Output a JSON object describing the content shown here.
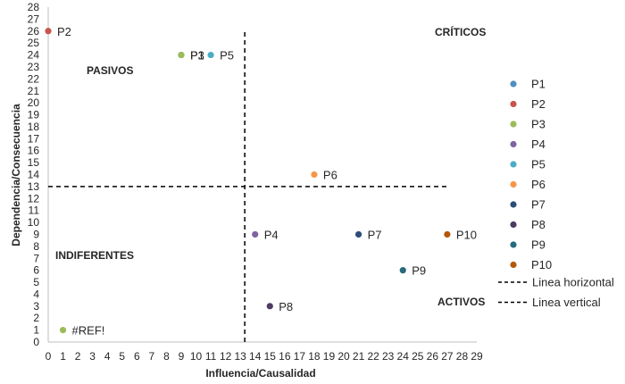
{
  "chart_data": {
    "type": "scatter",
    "title": "",
    "xlabel": "Influencia/Causalidad",
    "ylabel": "Dependencia/Consecuencia",
    "xlim": [
      0,
      29
    ],
    "ylim": [
      0,
      28
    ],
    "x_ticks": [
      0,
      1,
      2,
      3,
      4,
      5,
      6,
      7,
      8,
      9,
      10,
      11,
      12,
      13,
      14,
      15,
      16,
      17,
      18,
      19,
      20,
      21,
      22,
      23,
      24,
      25,
      26,
      27,
      28,
      29
    ],
    "y_ticks": [
      0,
      1,
      2,
      3,
      4,
      5,
      6,
      7,
      8,
      9,
      10,
      11,
      12,
      13,
      14,
      15,
      16,
      17,
      18,
      19,
      20,
      21,
      22,
      23,
      24,
      25,
      26,
      27,
      28
    ],
    "grid": false,
    "series": [
      {
        "name": "P1",
        "x": 9,
        "y": 24,
        "label": "P1",
        "color": "#4e8fc4"
      },
      {
        "name": "P2",
        "x": 0,
        "y": 26,
        "label": "P2",
        "color": "#c9544c"
      },
      {
        "name": "P3",
        "x": 9,
        "y": 24,
        "label": "P3",
        "color": "#9bbb59"
      },
      {
        "name": "P4",
        "x": 14,
        "y": 9,
        "label": "P4",
        "color": "#8064a2"
      },
      {
        "name": "P5",
        "x": 11,
        "y": 24,
        "label": "P5",
        "color": "#4bacc6"
      },
      {
        "name": "P6",
        "x": 18,
        "y": 14,
        "label": "P6",
        "color": "#f79646"
      },
      {
        "name": "P7",
        "x": 21,
        "y": 9,
        "label": "P7",
        "color": "#2c4d75"
      },
      {
        "name": "P8",
        "x": 15,
        "y": 3,
        "label": "P8",
        "color": "#4d3b62"
      },
      {
        "name": "P9",
        "x": 24,
        "y": 6,
        "label": "P9",
        "color": "#276a7c"
      },
      {
        "name": "P10",
        "x": 27,
        "y": 9,
        "label": "P10",
        "color": "#b65708"
      }
    ],
    "extra_points": [
      {
        "x": 1,
        "y": 1,
        "label": "#REF!",
        "color": "#9bbb59"
      }
    ],
    "reference_lines": [
      {
        "name": "Linea horizontal",
        "orientation": "horizontal",
        "value": 13,
        "from": 0,
        "to": 27
      },
      {
        "name": "Linea vertical",
        "orientation": "vertical",
        "value": 13.3,
        "from": 0,
        "to": 26
      }
    ],
    "quadrant_labels": {
      "criticos": "CRÍTICOS",
      "pasivos": "PASIVOS",
      "indiferentes": "INDIFERENTES",
      "activos": "ACTIVOS"
    },
    "legend": {
      "position": "right",
      "entries": [
        "P1",
        "P2",
        "P3",
        "P4",
        "P5",
        "P6",
        "P7",
        "P8",
        "P9",
        "P10",
        "Linea horizontal",
        "Linea vertical"
      ]
    }
  }
}
